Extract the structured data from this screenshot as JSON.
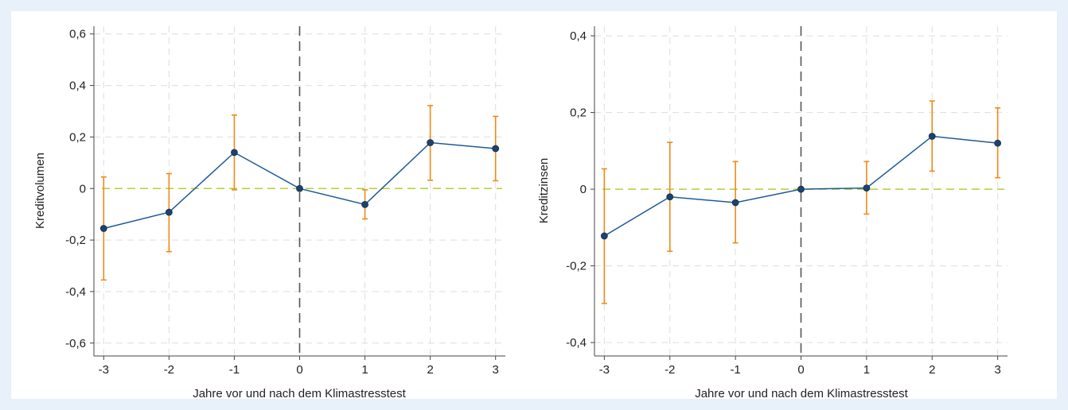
{
  "colors": {
    "background": "#e8f0fa",
    "panel": "#ffffff",
    "line": "#1f5a96",
    "marker": "#1d4270",
    "error_bar": "#ef8a17",
    "zero_line": "#b8cc3a",
    "event_line": "#555555",
    "grid": "#dddddd",
    "axis": "#444444"
  },
  "chart_data": [
    {
      "type": "line",
      "ylabel": "Kreditvolumen",
      "xlabel": "Jahre vor und nach dem Klimastresstest",
      "x": [
        -3,
        -2,
        -1,
        0,
        1,
        2,
        3
      ],
      "x_tick_labels": [
        "-3",
        "-2",
        "-1",
        "0",
        "1",
        "2",
        "3"
      ],
      "y_ticks": [
        -0.6,
        -0.4,
        -0.2,
        0,
        0.2,
        0.4,
        0.6
      ],
      "y_tick_labels": [
        "-0,6",
        "-0,4",
        "-0,2",
        "0",
        "0,2",
        "0,4",
        "0,6"
      ],
      "ylim": [
        -0.65,
        0.63
      ],
      "xlim": [
        -3.15,
        3.15
      ],
      "event_x": 0,
      "grid": true,
      "series": [
        {
          "values": [
            -0.155,
            -0.092,
            0.14,
            0.0,
            -0.062,
            0.178,
            0.155
          ],
          "ci_low": [
            -0.355,
            -0.245,
            -0.005,
            0.0,
            -0.118,
            0.032,
            0.03
          ],
          "ci_high": [
            0.045,
            0.058,
            0.285,
            0.0,
            -0.005,
            0.322,
            0.28
          ]
        }
      ]
    },
    {
      "type": "line",
      "ylabel": "Kreditzinsen",
      "xlabel": "Jahre vor und nach dem Klimastresstest",
      "x": [
        -3,
        -2,
        -1,
        0,
        1,
        2,
        3
      ],
      "x_tick_labels": [
        "-3",
        "-2",
        "-1",
        "0",
        "1",
        "2",
        "3"
      ],
      "y_ticks": [
        -0.4,
        -0.2,
        0,
        0.2,
        0.4
      ],
      "y_tick_labels": [
        "-0,4",
        "-0,2",
        "0",
        "0,2",
        "0,4"
      ],
      "ylim": [
        -0.435,
        0.425
      ],
      "xlim": [
        -3.15,
        3.15
      ],
      "event_x": 0,
      "grid": true,
      "series": [
        {
          "values": [
            -0.122,
            -0.02,
            -0.035,
            0.0,
            0.003,
            0.138,
            0.12
          ],
          "ci_low": [
            -0.298,
            -0.162,
            -0.14,
            0.0,
            -0.065,
            0.047,
            0.03
          ],
          "ci_high": [
            0.053,
            0.122,
            0.072,
            0.0,
            0.072,
            0.23,
            0.212
          ]
        }
      ]
    }
  ]
}
